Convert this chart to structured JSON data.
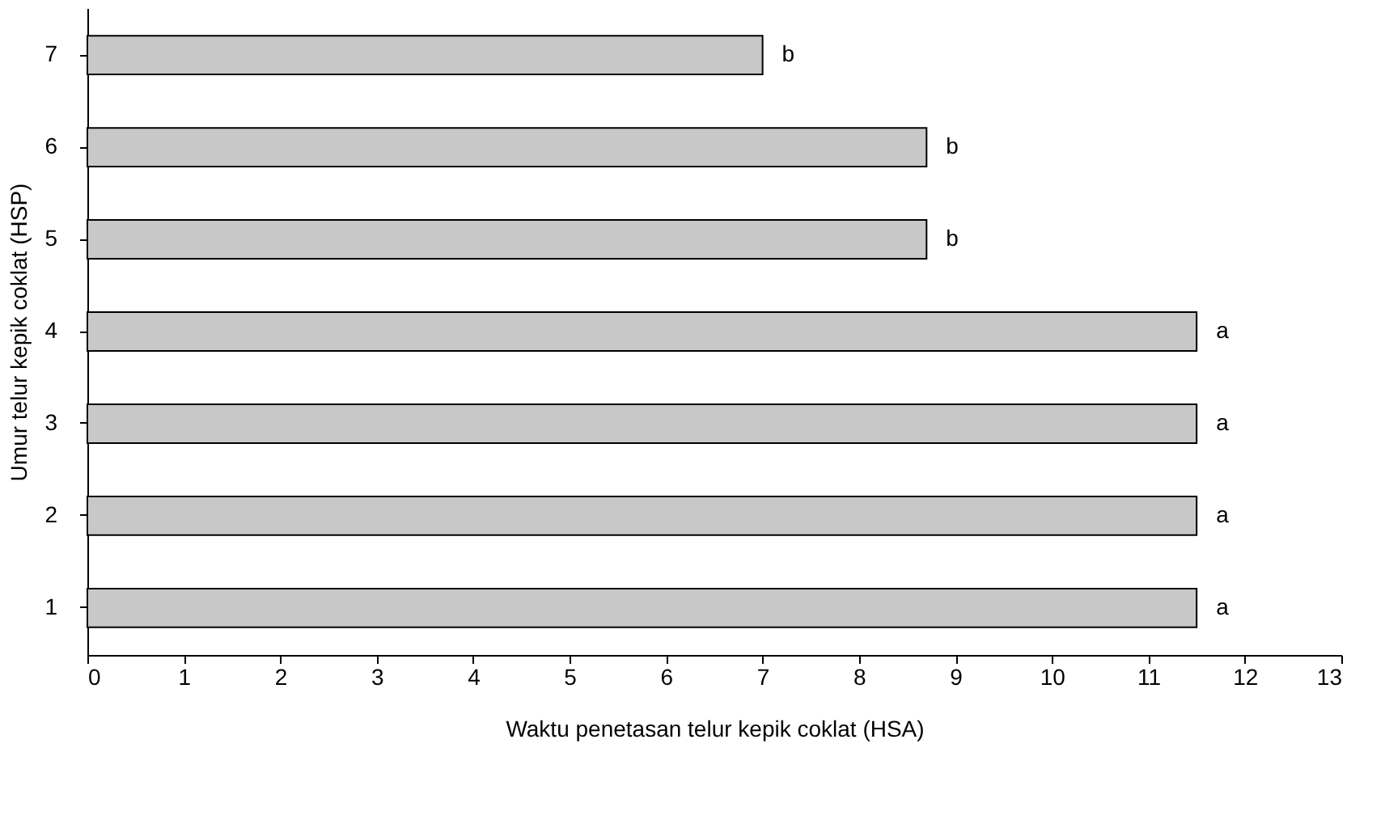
{
  "chart_data": {
    "type": "bar",
    "orientation": "horizontal",
    "categories": [
      "7",
      "6",
      "5",
      "4",
      "3",
      "2",
      "1"
    ],
    "values": [
      7.0,
      8.7,
      8.7,
      11.5,
      11.5,
      11.5,
      11.5
    ],
    "color": "#c8c8c8",
    "xlabel": "Waktu penetasan telur kepik coklat (HSA)",
    "ylabel": "Umur telur kepik coklat (HSP)",
    "xlim": [
      0,
      13
    ],
    "xticks": [
      0,
      1,
      2,
      3,
      4,
      5,
      6,
      7,
      8,
      9,
      10,
      11,
      12,
      13
    ],
    "grid": false,
    "annotations": [
      {
        "text": "b",
        "x": 7.0,
        "y": "7"
      },
      {
        "text": "b",
        "x": 8.7,
        "y": "6"
      },
      {
        "text": "b",
        "x": 8.7,
        "y": "5"
      },
      {
        "text": "a",
        "x": 11.5,
        "y": "4"
      },
      {
        "text": "a",
        "x": 11.5,
        "y": "3"
      },
      {
        "text": "a",
        "x": 11.5,
        "y": "2"
      },
      {
        "text": "a",
        "x": 11.5,
        "y": "1"
      }
    ]
  }
}
